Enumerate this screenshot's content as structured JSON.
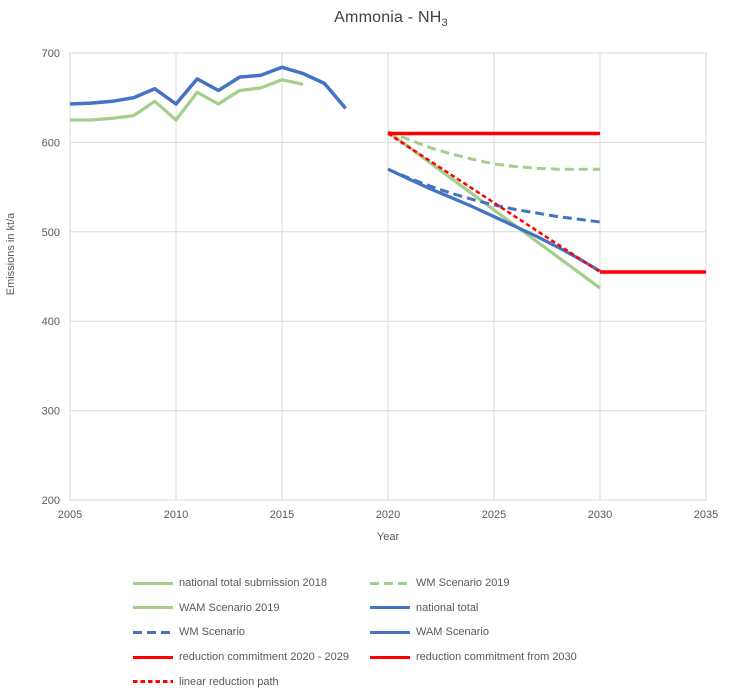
{
  "title": {
    "main": "Ammonia - NH",
    "sub": "3"
  },
  "chart_data": {
    "type": "line",
    "title": "Ammonia - NH3",
    "xlabel": "Year",
    "ylabel": "Emissions in kt/a",
    "xlim": [
      2005,
      2035
    ],
    "xstep": 5,
    "ylim": [
      200,
      700
    ],
    "ystep": 100,
    "grid": true,
    "legend_position": "bottom",
    "colors": {
      "green": "#A5CE8C",
      "blue": "#4472C4",
      "red": "#FF0000",
      "gridline": "#D9D9D9",
      "axis_text": "#595959",
      "title_text": "#404040"
    },
    "series": [
      {
        "name": "national total submission 2018",
        "color": "green",
        "style": "solid",
        "width": 3.25,
        "points": [
          [
            2005,
            625
          ],
          [
            2006,
            625
          ],
          [
            2007,
            627
          ],
          [
            2008,
            630
          ],
          [
            2009,
            646
          ],
          [
            2010,
            625
          ],
          [
            2011,
            656
          ],
          [
            2012,
            643
          ],
          [
            2013,
            658
          ],
          [
            2014,
            661
          ],
          [
            2015,
            670
          ],
          [
            2016,
            665
          ]
        ]
      },
      {
        "name": "WM Scenario 2019",
        "color": "green",
        "style": "dash",
        "width": 3,
        "points": [
          [
            2020,
            612
          ],
          [
            2021,
            603
          ],
          [
            2022,
            594
          ],
          [
            2023,
            587
          ],
          [
            2024,
            581
          ],
          [
            2025,
            576
          ],
          [
            2026,
            573
          ],
          [
            2027,
            571
          ],
          [
            2028,
            570
          ],
          [
            2029,
            570
          ],
          [
            2030,
            570
          ]
        ]
      },
      {
        "name": "WAM Scenario 2019",
        "color": "green",
        "style": "solid",
        "width": 3.25,
        "points": [
          [
            2020,
            612
          ],
          [
            2030,
            437
          ]
        ]
      },
      {
        "name": "national total",
        "color": "blue",
        "style": "solid",
        "width": 3.5,
        "points": [
          [
            2005,
            643
          ],
          [
            2006,
            644
          ],
          [
            2007,
            646
          ],
          [
            2008,
            650
          ],
          [
            2009,
            660
          ],
          [
            2010,
            643
          ],
          [
            2011,
            671
          ],
          [
            2012,
            658
          ],
          [
            2013,
            673
          ],
          [
            2014,
            675
          ],
          [
            2015,
            684
          ],
          [
            2016,
            677
          ],
          [
            2017,
            666
          ],
          [
            2018,
            638
          ]
        ]
      },
      {
        "name": "WM Scenario",
        "color": "blue",
        "style": "dash",
        "width": 3,
        "points": [
          [
            2020,
            570
          ],
          [
            2021,
            560
          ],
          [
            2022,
            551
          ],
          [
            2023,
            543
          ],
          [
            2024,
            536
          ],
          [
            2025,
            530
          ],
          [
            2026,
            525
          ],
          [
            2027,
            521
          ],
          [
            2028,
            517
          ],
          [
            2029,
            514
          ],
          [
            2030,
            511
          ]
        ]
      },
      {
        "name": "WAM Scenario",
        "color": "blue",
        "style": "solid",
        "width": 3.25,
        "points": [
          [
            2020,
            570
          ],
          [
            2021,
            559
          ],
          [
            2022,
            548
          ],
          [
            2023,
            538
          ],
          [
            2024,
            528
          ],
          [
            2025,
            517
          ],
          [
            2026,
            506
          ],
          [
            2027,
            495
          ],
          [
            2028,
            483
          ],
          [
            2029,
            470
          ],
          [
            2030,
            456
          ]
        ]
      },
      {
        "name": "reduction commitment 2020 - 2029",
        "color": "red",
        "style": "solid",
        "width": 3.5,
        "points": [
          [
            2020,
            610
          ],
          [
            2030,
            610
          ]
        ]
      },
      {
        "name": "reduction commitment from 2030",
        "color": "red",
        "style": "solid",
        "width": 3.5,
        "points": [
          [
            2030,
            455
          ],
          [
            2035,
            455
          ]
        ]
      },
      {
        "name": "linear reduction path",
        "color": "red",
        "style": "shortdash",
        "width": 2.5,
        "points": [
          [
            2020,
            610
          ],
          [
            2030,
            455
          ]
        ]
      }
    ]
  }
}
